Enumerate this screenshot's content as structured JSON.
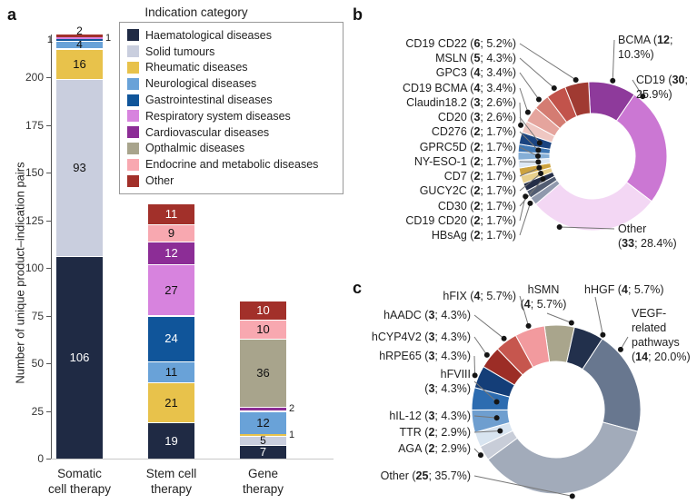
{
  "figure": {
    "panel_labels": {
      "a": "a",
      "b": "b",
      "c": "c"
    }
  },
  "chart_data": [
    {
      "id": "a",
      "type": "bar",
      "stacked": true,
      "legend_title": "Indication category",
      "ylabel": "Number of unique product–indication pairs",
      "ylim": [
        0,
        225
      ],
      "yticks": [
        0,
        25,
        50,
        75,
        100,
        125,
        150,
        175,
        200
      ],
      "grid": false,
      "categories": [
        [
          "Somatic",
          "cell therapy"
        ],
        [
          "Stem cell",
          "therapy"
        ],
        [
          "Gene",
          "therapy"
        ]
      ],
      "series": [
        {
          "name": "Haematological diseases",
          "color": "#1f2a44",
          "values": [
            106,
            19,
            7
          ]
        },
        {
          "name": "Solid tumours",
          "color": "#c9cede",
          "values": [
            93,
            0,
            5
          ]
        },
        {
          "name": "Rheumatic diseases",
          "color": "#e8c24b",
          "values": [
            16,
            21,
            1
          ]
        },
        {
          "name": "Neurological diseases",
          "color": "#69a2d8",
          "values": [
            4,
            11,
            12
          ]
        },
        {
          "name": "Gastrointestinal diseases",
          "color": "#10559a",
          "values": [
            1,
            24,
            0
          ]
        },
        {
          "name": "Respiratory system diseases",
          "color": "#d783de",
          "values": [
            1,
            27,
            0
          ]
        },
        {
          "name": "Cardiovascular diseases",
          "color": "#8c2d96",
          "values": [
            0,
            12,
            2
          ]
        },
        {
          "name": "Opthalmic diseases",
          "color": "#a8a48c",
          "values": [
            0,
            0,
            36
          ]
        },
        {
          "name": "Endocrine and metabolic diseases",
          "color": "#f8a8b0",
          "values": [
            0,
            9,
            10
          ]
        },
        {
          "name": "Other",
          "color": "#a2302a",
          "values": [
            2,
            11,
            10
          ]
        }
      ]
    },
    {
      "id": "b",
      "type": "donut",
      "total": 116,
      "slices": [
        {
          "name": "BCMA",
          "value": 12,
          "pct": "10.3",
          "color": "#8e3a9b",
          "label_lines": [
            "BCMA (12;",
            "10.3%)"
          ]
        },
        {
          "name": "CD19",
          "value": 30,
          "pct": "25.9",
          "color": "#cb77d3",
          "label_lines": [
            "CD19 (30;",
            "25.9%)"
          ]
        },
        {
          "name": "Other",
          "value": 33,
          "pct": "28.4",
          "color": "#f3d7f4",
          "label_lines": [
            "Other",
            "(33; 28.4%)"
          ]
        },
        {
          "name": "HBsAg",
          "value": 2,
          "pct": "1.7",
          "color": "#9099ad"
        },
        {
          "name": "CD19 CD20",
          "value": 2,
          "pct": "1.7",
          "color": "#535d72"
        },
        {
          "name": "CD30",
          "value": 2,
          "pct": "1.7",
          "color": "#252e47"
        },
        {
          "name": "GUCY2C",
          "value": 2,
          "pct": "1.7",
          "color": "#e8d08c"
        },
        {
          "name": "CD7",
          "value": 2,
          "pct": "1.7",
          "color": "#cda33f"
        },
        {
          "name": "NY-ESO-1",
          "value": 2,
          "pct": "1.7",
          "color": "#dde8f4"
        },
        {
          "name": "GPRC5D",
          "value": 2,
          "pct": "1.7",
          "color": "#85aed6"
        },
        {
          "name": "CD276",
          "value": 2,
          "pct": "1.7",
          "color": "#3f77b4"
        },
        {
          "name": "CD20",
          "value": 3,
          "pct": "2.6",
          "color": "#1b4480"
        },
        {
          "name": "Claudin18.2",
          "value": 3,
          "pct": "2.6",
          "color": "#efc7c2"
        },
        {
          "name": "CD19 BCMA",
          "value": 4,
          "pct": "3.4",
          "color": "#e5a49d"
        },
        {
          "name": "GPC3",
          "value": 4,
          "pct": "3.4",
          "color": "#d47c72"
        },
        {
          "name": "MSLN",
          "value": 5,
          "pct": "4.3",
          "color": "#c2534b"
        },
        {
          "name": "CD19 CD22",
          "value": 6,
          "pct": "5.2",
          "color": "#a03a32"
        }
      ]
    },
    {
      "id": "c",
      "type": "donut",
      "total": 70,
      "slices": [
        {
          "name": "hSMN",
          "value": 4,
          "pct": "5.7",
          "color": "#a9a58c",
          "label_lines": [
            "hSMN",
            "(4; 5.7%)"
          ]
        },
        {
          "name": "hHGF",
          "value": 4,
          "pct": "5.7",
          "color": "#22304c"
        },
        {
          "name": "VEGF-related pathways",
          "value": 14,
          "pct": "20.0",
          "color": "#68778f",
          "label_lines": [
            "VEGF-",
            "related",
            "pathways",
            "(14; 20.0%)"
          ]
        },
        {
          "name": "Other",
          "value": 25,
          "pct": "35.7",
          "color": "#a2abba"
        },
        {
          "name": "AGA",
          "value": 2,
          "pct": "2.9",
          "color": "#c8cdd8"
        },
        {
          "name": "TTR",
          "value": 2,
          "pct": "2.9",
          "color": "#d8e4f0"
        },
        {
          "name": "hIL-12",
          "value": 3,
          "pct": "4.3",
          "color": "#6e9ecf"
        },
        {
          "name": "hFVIII",
          "value": 3,
          "pct": "4.3",
          "color": "#2d6cb0",
          "label_lines": [
            "hFVIII",
            "(3; 4.3%)"
          ]
        },
        {
          "name": "hRPE65",
          "value": 3,
          "pct": "4.3",
          "color": "#143e78"
        },
        {
          "name": "hCYP4V2",
          "value": 3,
          "pct": "4.3",
          "color": "#9c2d26"
        },
        {
          "name": "hAADC",
          "value": 3,
          "pct": "4.3",
          "color": "#c6564e"
        },
        {
          "name": "hFIX",
          "value": 4,
          "pct": "5.7",
          "color": "#f29a9e"
        }
      ]
    }
  ]
}
